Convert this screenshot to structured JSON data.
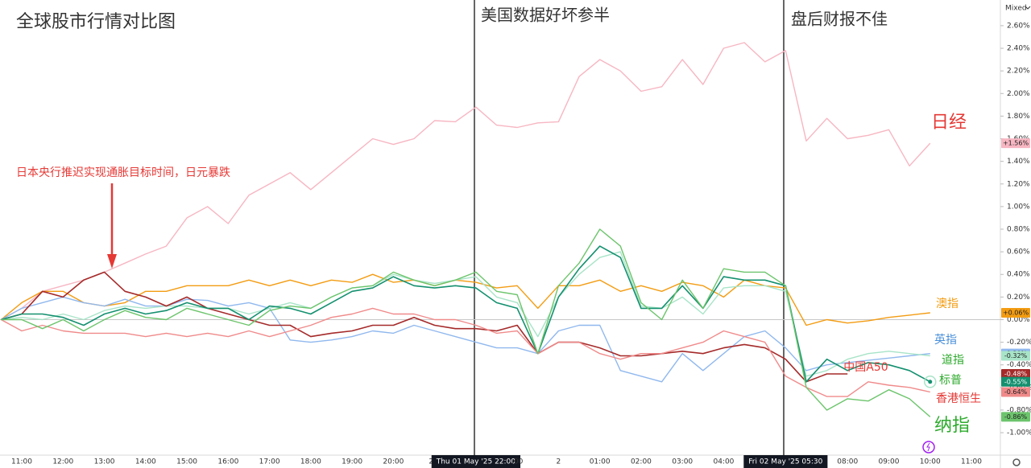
{
  "chart_data": {
    "type": "line",
    "title": "全球股市行情对比图",
    "annotations": [
      "美国数据好坏参半",
      "盘后财报不佳",
      "日本央行推迟实现通胀目标时间，日元暴跌"
    ],
    "scale_label": "Mixed",
    "categories": [
      null,
      "11:00",
      null,
      "12:00",
      null,
      "13:00",
      null,
      "14:00",
      null,
      "15:00",
      null,
      "16:00",
      null,
      "17:00",
      null,
      "18:00",
      null,
      "19:00",
      null,
      "20:00",
      null,
      "21:",
      null,
      "Thu 01 May '25   22:00",
      null,
      ":00",
      null,
      "2",
      null,
      "01:00",
      null,
      "02:00",
      null,
      "03:00",
      null,
      "04:00",
      null,
      null,
      "Fri 02 May '25   05:30",
      null,
      null,
      "08:00",
      null,
      "09:00",
      null,
      "10:00",
      null,
      "11:00"
    ],
    "ylim": [
      -1.2,
      2.8
    ],
    "yticks": [
      {
        "value": 2.6,
        "label": "2.60%"
      },
      {
        "value": 2.4,
        "label": "2.40%"
      },
      {
        "value": 2.2,
        "label": "2.20%"
      },
      {
        "value": 2.0,
        "label": "2.00%"
      },
      {
        "value": 1.8,
        "label": "1.80%"
      },
      {
        "value": 1.6,
        "label": "1.60%"
      },
      {
        "value": 1.4,
        "label": "1.40%"
      },
      {
        "value": 1.2,
        "label": "1.20%"
      },
      {
        "value": 1.0,
        "label": "1.00%"
      },
      {
        "value": 0.8,
        "label": "0.80%"
      },
      {
        "value": 0.6,
        "label": "0.60%"
      },
      {
        "value": 0.4,
        "label": "0.40%"
      },
      {
        "value": 0.2,
        "label": "0.20%"
      },
      {
        "value": 0,
        "label": "0.00%"
      },
      {
        "value": -0.2,
        "label": "-0.20%"
      },
      {
        "value": -0.4,
        "label": "-0.40%"
      },
      {
        "value": -0.6,
        "label": "-0.60%"
      },
      {
        "value": -0.8,
        "label": "-0.80%"
      },
      {
        "value": -1.0,
        "label": "-1.00%"
      }
    ],
    "series": [
      {
        "name": "日经",
        "color": "#f7b6c2",
        "label_color": "#e53935",
        "values": [
          0,
          0.1,
          0.25,
          0.3,
          0.35,
          0.42,
          0.5,
          0.58,
          0.65,
          0.9,
          1.0,
          0.85,
          1.1,
          1.2,
          1.3,
          1.15,
          1.3,
          1.45,
          1.6,
          1.55,
          1.6,
          1.76,
          1.75,
          1.88,
          1.72,
          1.7,
          1.74,
          1.75,
          2.15,
          2.3,
          2.2,
          2.02,
          2.06,
          2.3,
          2.08,
          2.4,
          2.45,
          2.28,
          2.38,
          1.58,
          1.78,
          1.6,
          1.63,
          1.68,
          1.36,
          1.56,
          null,
          null
        ],
        "end_label": {
          "value": 1.56,
          "label": "+1.56%"
        }
      },
      {
        "name": "澳指",
        "color": "#f39c12",
        "label_color": "#f39c12",
        "values": [
          0,
          0.15,
          0.25,
          0.25,
          0.15,
          0.12,
          0.15,
          0.25,
          0.25,
          0.3,
          0.3,
          0.3,
          0.35,
          0.3,
          0.35,
          0.3,
          0.35,
          0.33,
          0.4,
          0.33,
          0.35,
          0.3,
          0.35,
          0.33,
          0.28,
          0.3,
          0.1,
          0.3,
          0.3,
          0.35,
          0.25,
          0.3,
          0.25,
          0.33,
          0.3,
          0.2,
          0.35,
          0.3,
          0.28,
          -0.05,
          0.0,
          -0.03,
          -0.01,
          0.02,
          0.04,
          0.06,
          null,
          null
        ],
        "end_label": {
          "value": 0.06,
          "label": "+0.06%"
        }
      },
      {
        "name": "英指",
        "color": "#90b8ee",
        "label_color": "#4a90d9",
        "values": [
          0,
          0.1,
          0.15,
          0.2,
          0.15,
          0.12,
          0.18,
          0.12,
          0.12,
          0.18,
          0.17,
          0.12,
          0.15,
          0.1,
          -0.18,
          -0.2,
          -0.18,
          -0.15,
          -0.1,
          -0.12,
          -0.05,
          -0.1,
          -0.15,
          -0.2,
          -0.25,
          -0.25,
          -0.3,
          -0.1,
          -0.05,
          -0.05,
          -0.45,
          -0.5,
          -0.55,
          -0.3,
          -0.45,
          -0.3,
          -0.15,
          -0.1,
          -0.25,
          -0.45,
          -0.4,
          -0.38,
          -0.36,
          -0.34,
          -0.32,
          -0.3,
          null,
          null
        ],
        "end_label": {
          "value": -0.3,
          "label": "-0.30%"
        }
      },
      {
        "name": "道指",
        "color": "#a8e4c8",
        "label_color": "#2eaa2e",
        "values": [
          0,
          0.02,
          0.0,
          0.05,
          0.0,
          0.08,
          0.12,
          0.1,
          0.12,
          0.12,
          0.1,
          0.1,
          0.05,
          0.1,
          0.15,
          0.1,
          0.2,
          0.28,
          0.3,
          0.4,
          0.35,
          0.32,
          0.35,
          0.38,
          0.2,
          0.15,
          -0.15,
          0.2,
          0.4,
          0.55,
          0.6,
          0.12,
          0.1,
          0.2,
          0.05,
          0.28,
          0.3,
          0.3,
          0.25,
          -0.5,
          -0.45,
          -0.35,
          -0.3,
          -0.28,
          -0.3,
          -0.32,
          null,
          null
        ],
        "end_label": {
          "value": -0.32,
          "label": "-0.32%"
        }
      },
      {
        "name": "中国A50",
        "color": "#a52a2a",
        "label_color": "#e53935",
        "values": [
          0,
          0.05,
          0.25,
          0.2,
          0.35,
          0.42,
          0.25,
          0.2,
          0.12,
          0.2,
          0.1,
          0.05,
          0.0,
          -0.05,
          -0.05,
          -0.15,
          -0.12,
          -0.1,
          -0.05,
          -0.05,
          0.02,
          -0.05,
          -0.08,
          -0.08,
          -0.1,
          -0.05,
          -0.3,
          -0.2,
          -0.2,
          -0.25,
          -0.32,
          -0.32,
          -0.3,
          -0.28,
          -0.3,
          -0.25,
          -0.22,
          -0.25,
          -0.35,
          -0.55,
          -0.48,
          -0.48,
          null,
          null,
          null,
          null,
          null,
          null
        ],
        "end_label": {
          "value": -0.48,
          "label": "-0.48%"
        }
      },
      {
        "name": "标普",
        "color": "#14906f",
        "label_color": "#2eaa2e",
        "values": [
          0,
          0.05,
          0.05,
          0.02,
          -0.05,
          0.05,
          0.1,
          0.05,
          0.08,
          0.15,
          0.1,
          0.1,
          0.0,
          0.12,
          0.1,
          0.05,
          0.15,
          0.25,
          0.28,
          0.38,
          0.3,
          0.28,
          0.3,
          0.28,
          0.15,
          0.1,
          -0.3,
          0.2,
          0.45,
          0.65,
          0.55,
          0.1,
          0.1,
          0.3,
          0.1,
          0.38,
          0.35,
          0.35,
          0.3,
          -0.55,
          -0.35,
          -0.45,
          -0.38,
          -0.4,
          -0.45,
          -0.55,
          null,
          null
        ],
        "end_label": {
          "value": -0.55,
          "label": "-0.55%"
        }
      },
      {
        "name": "香港恒生",
        "color": "#f08a8a",
        "label_color": "#e53935",
        "values": [
          0,
          -0.1,
          -0.05,
          -0.1,
          -0.12,
          -0.12,
          -0.12,
          -0.15,
          -0.12,
          -0.15,
          -0.12,
          -0.15,
          -0.1,
          -0.15,
          -0.1,
          -0.05,
          0.02,
          0.05,
          0.1,
          0.05,
          0.05,
          0.0,
          0.0,
          -0.05,
          -0.12,
          -0.1,
          -0.3,
          -0.2,
          -0.2,
          -0.3,
          -0.35,
          -0.3,
          -0.3,
          -0.25,
          -0.2,
          -0.1,
          -0.15,
          -0.2,
          -0.5,
          -0.6,
          -0.68,
          -0.68,
          -0.55,
          -0.58,
          -0.6,
          -0.64,
          null,
          null
        ],
        "end_label": {
          "value": -0.64,
          "label": "-0.64%"
        }
      },
      {
        "name": "纳指",
        "color": "#6cc46c",
        "label_color": "#2eaa2e",
        "values": [
          0,
          0.0,
          -0.08,
          0.0,
          -0.1,
          0.0,
          0.08,
          0.02,
          0.0,
          0.1,
          0.05,
          0.0,
          -0.05,
          0.08,
          0.12,
          0.1,
          0.2,
          0.28,
          0.3,
          0.42,
          0.35,
          0.3,
          0.35,
          0.42,
          0.25,
          0.22,
          -0.3,
          0.3,
          0.5,
          0.8,
          0.65,
          0.15,
          0.0,
          0.35,
          0.1,
          0.45,
          0.42,
          0.42,
          0.3,
          -0.6,
          -0.8,
          -0.7,
          -0.72,
          -0.62,
          -0.7,
          -0.86,
          null,
          null
        ],
        "end_label": {
          "value": -0.86,
          "label": "-0.86%"
        }
      }
    ]
  }
}
